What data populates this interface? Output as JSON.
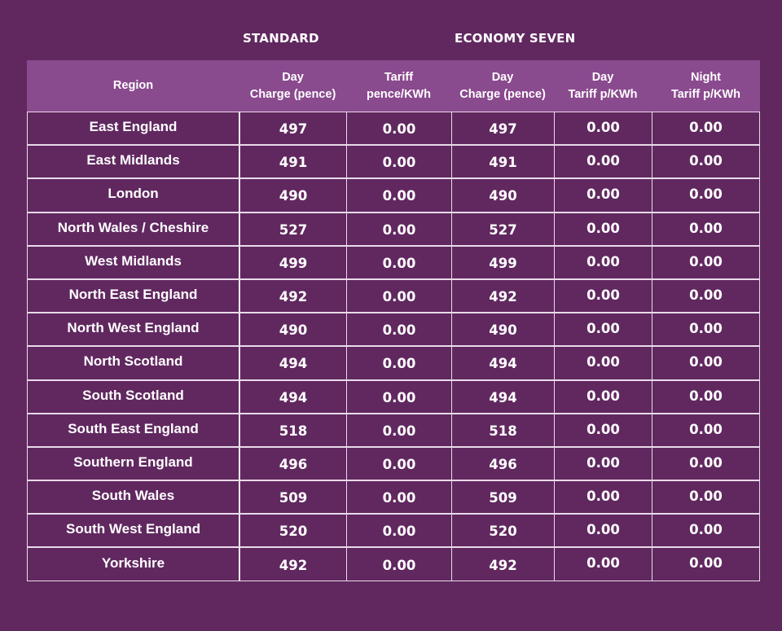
{
  "groups": {
    "standard": "STANDARD",
    "economy_seven": "ECONOMY SEVEN"
  },
  "headers": [
    "Region",
    "Day\nCharge (pence)",
    "Tariff\npence/KWh",
    "Day\nCharge (pence)",
    "Day\nTariff p/KWh",
    "Night\nTariff p/KWh"
  ],
  "colors": {
    "background": "#612860",
    "header_band": "#8a4a8e",
    "grid_lines": "#e9dbe9",
    "text": "#ffffff"
  },
  "rows": [
    {
      "region": "East England",
      "std_day": "497",
      "std_tariff": "0.00",
      "e7_day": "497",
      "e7_day_tariff": "0.00",
      "e7_night_tariff": "0.00"
    },
    {
      "region": "East Midlands",
      "std_day": "491",
      "std_tariff": "0.00",
      "e7_day": "491",
      "e7_day_tariff": "0.00",
      "e7_night_tariff": "0.00"
    },
    {
      "region": "London",
      "std_day": "490",
      "std_tariff": "0.00",
      "e7_day": "490",
      "e7_day_tariff": "0.00",
      "e7_night_tariff": "0.00"
    },
    {
      "region": "North Wales / Cheshire",
      "std_day": "527",
      "std_tariff": "0.00",
      "e7_day": "527",
      "e7_day_tariff": "0.00",
      "e7_night_tariff": "0.00"
    },
    {
      "region": "West Midlands",
      "std_day": "499",
      "std_tariff": "0.00",
      "e7_day": "499",
      "e7_day_tariff": "0.00",
      "e7_night_tariff": "0.00"
    },
    {
      "region": "North East England",
      "std_day": "492",
      "std_tariff": "0.00",
      "e7_day": "492",
      "e7_day_tariff": "0.00",
      "e7_night_tariff": "0.00"
    },
    {
      "region": "North West England",
      "std_day": "490",
      "std_tariff": "0.00",
      "e7_day": "490",
      "e7_day_tariff": "0.00",
      "e7_night_tariff": "0.00"
    },
    {
      "region": "North Scotland",
      "std_day": "494",
      "std_tariff": "0.00",
      "e7_day": "494",
      "e7_day_tariff": "0.00",
      "e7_night_tariff": "0.00"
    },
    {
      "region": "South Scotland",
      "std_day": "494",
      "std_tariff": "0.00",
      "e7_day": "494",
      "e7_day_tariff": "0.00",
      "e7_night_tariff": "0.00"
    },
    {
      "region": "South East England",
      "std_day": "518",
      "std_tariff": "0.00",
      "e7_day": "518",
      "e7_day_tariff": "0.00",
      "e7_night_tariff": "0.00"
    },
    {
      "region": "Southern England",
      "std_day": "496",
      "std_tariff": "0.00",
      "e7_day": "496",
      "e7_day_tariff": "0.00",
      "e7_night_tariff": "0.00"
    },
    {
      "region": "South Wales",
      "std_day": "509",
      "std_tariff": "0.00",
      "e7_day": "509",
      "e7_day_tariff": "0.00",
      "e7_night_tariff": "0.00"
    },
    {
      "region": "South West England",
      "std_day": "520",
      "std_tariff": "0.00",
      "e7_day": "520",
      "e7_day_tariff": "0.00",
      "e7_night_tariff": "0.00"
    },
    {
      "region": "Yorkshire",
      "std_day": "492",
      "std_tariff": "0.00",
      "e7_day": "492",
      "e7_day_tariff": "0.00",
      "e7_night_tariff": "0.00"
    }
  ]
}
